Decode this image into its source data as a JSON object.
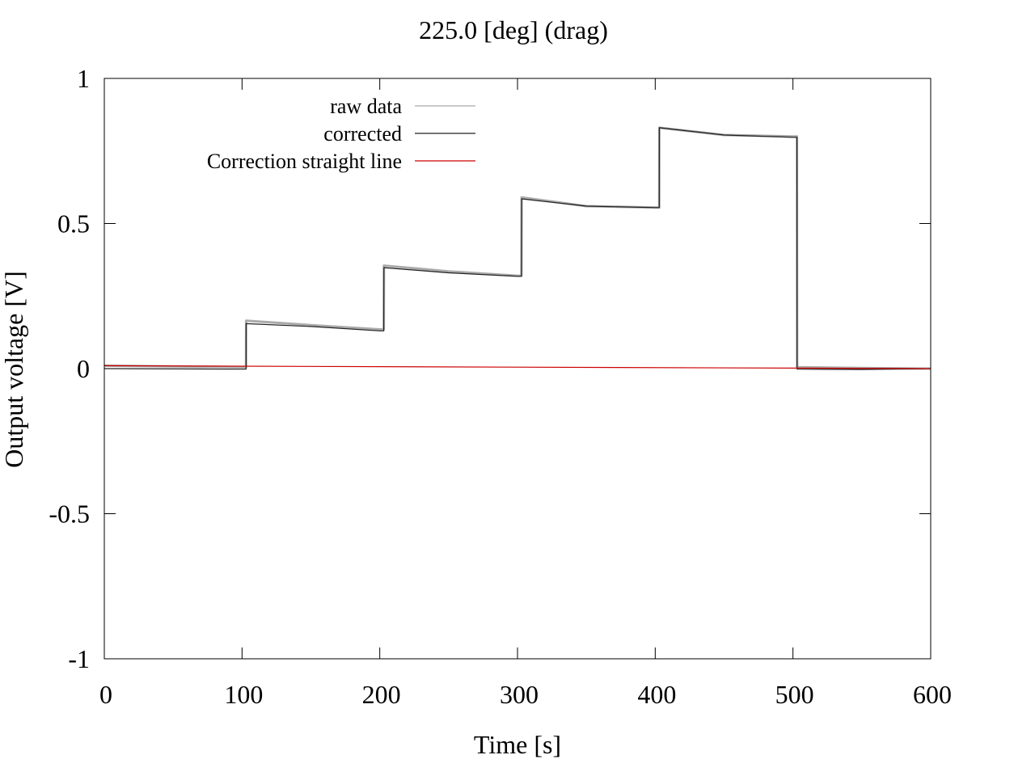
{
  "chart_data": {
    "type": "line",
    "title": "225.0 [deg] (drag)",
    "xlabel": "Time [s]",
    "ylabel": "Output voltage [V]",
    "xlim": [
      0,
      600
    ],
    "ylim": [
      -1,
      1
    ],
    "xticks": [
      0,
      100,
      200,
      300,
      400,
      500,
      600
    ],
    "yticks": [
      -1,
      -0.5,
      0,
      0.5,
      1
    ],
    "xtick_labels": [
      "0",
      "100",
      "200",
      "300",
      "400",
      "500",
      "600"
    ],
    "ytick_labels": [
      "-1",
      "-0.5",
      "0",
      "0.5",
      "1"
    ],
    "grid": false,
    "legend_position": "top-left",
    "series": [
      {
        "name": "raw data",
        "color": "#aaaaaa",
        "x": [
          0,
          102.9,
          103,
          150,
          200,
          202.9,
          203,
          250,
          300,
          302.9,
          303,
          350,
          400,
          402.9,
          403,
          450,
          500,
          502.9,
          503,
          550,
          600
        ],
        "y": [
          0.01,
          0.005,
          0.165,
          0.15,
          0.135,
          0.135,
          0.355,
          0.335,
          0.32,
          0.32,
          0.59,
          0.56,
          0.555,
          0.555,
          0.83,
          0.805,
          0.8,
          0.8,
          0.005,
          0.002,
          0.0
        ]
      },
      {
        "name": "corrected",
        "color": "#222222",
        "x": [
          0,
          102.9,
          103,
          150,
          200,
          202.9,
          203,
          250,
          300,
          302.9,
          303,
          350,
          400,
          402.9,
          403,
          450,
          500,
          502.9,
          503,
          550,
          600
        ],
        "y": [
          0.0,
          -0.002,
          0.155,
          0.145,
          0.13,
          0.13,
          0.348,
          0.33,
          0.318,
          0.318,
          0.585,
          0.56,
          0.555,
          0.555,
          0.83,
          0.805,
          0.797,
          0.797,
          -0.002,
          -0.003,
          0.0
        ]
      },
      {
        "name": "Correction straight line",
        "color": "#cc0000",
        "x": [
          0,
          600
        ],
        "y": [
          0.01,
          0.0
        ]
      }
    ]
  }
}
